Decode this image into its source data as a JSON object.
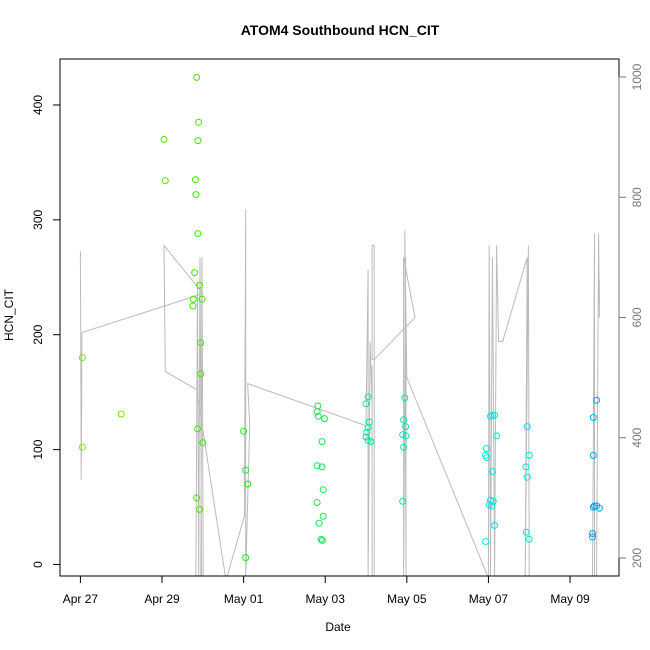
{
  "chart_data": {
    "type": "scatter",
    "title": "ATOM4 Southbound HCN_CIT",
    "xlabel": "Date",
    "ylabel": "HCN_CIT",
    "x_tick_labels": [
      "Apr 27",
      "Apr 29",
      "May 01",
      "May 03",
      "May 05",
      "May 07",
      "May 09"
    ],
    "x_tick_days": [
      0,
      2,
      4,
      6,
      8,
      10,
      12
    ],
    "xlim_days": [
      -0.5,
      13.2
    ],
    "y_ticks": [
      0,
      100,
      200,
      300,
      400
    ],
    "ylim": [
      -10,
      440
    ],
    "right_axis": {
      "label": "",
      "ticks": [
        200,
        400,
        600,
        800,
        1000
      ],
      "reversed": true,
      "ylim": [
        1030,
        170
      ],
      "color": "#777777"
    },
    "line_color": "#bbbbbb",
    "points": [
      {
        "day": 0.05,
        "y": 180,
        "color": "#7be600"
      },
      {
        "day": 0.05,
        "y": 102,
        "color": "#7be600"
      },
      {
        "day": 1.0,
        "y": 131,
        "color": "#6ee600"
      },
      {
        "day": 2.05,
        "y": 370,
        "color": "#55e600"
      },
      {
        "day": 2.08,
        "y": 334,
        "color": "#55e600"
      },
      {
        "day": 2.85,
        "y": 424,
        "color": "#44e600"
      },
      {
        "day": 2.9,
        "y": 385,
        "color": "#44e600"
      },
      {
        "day": 2.88,
        "y": 369,
        "color": "#44e600"
      },
      {
        "day": 2.82,
        "y": 335,
        "color": "#44e600"
      },
      {
        "day": 2.83,
        "y": 322,
        "color": "#44e600"
      },
      {
        "day": 2.88,
        "y": 288,
        "color": "#44e600"
      },
      {
        "day": 2.8,
        "y": 254,
        "color": "#44e600"
      },
      {
        "day": 2.92,
        "y": 243,
        "color": "#44e600"
      },
      {
        "day": 2.77,
        "y": 231,
        "color": "#44e600"
      },
      {
        "day": 2.98,
        "y": 231,
        "color": "#44e600"
      },
      {
        "day": 2.76,
        "y": 225,
        "color": "#44e600"
      },
      {
        "day": 2.95,
        "y": 193,
        "color": "#44e600"
      },
      {
        "day": 2.95,
        "y": 166,
        "color": "#44e600"
      },
      {
        "day": 2.87,
        "y": 118,
        "color": "#44e600"
      },
      {
        "day": 3.0,
        "y": 106,
        "color": "#44e600"
      },
      {
        "day": 2.85,
        "y": 58,
        "color": "#44e600"
      },
      {
        "day": 2.92,
        "y": 48,
        "color": "#44e600"
      },
      {
        "day": 4.0,
        "y": 116,
        "color": "#1ee628"
      },
      {
        "day": 4.05,
        "y": 82,
        "color": "#1ee628"
      },
      {
        "day": 4.1,
        "y": 70,
        "color": "#1ee628"
      },
      {
        "day": 4.05,
        "y": 6,
        "color": "#1ee628"
      },
      {
        "day": 5.82,
        "y": 138,
        "color": "#10e650"
      },
      {
        "day": 5.8,
        "y": 133,
        "color": "#10e650"
      },
      {
        "day": 5.83,
        "y": 129,
        "color": "#10e650"
      },
      {
        "day": 5.98,
        "y": 127,
        "color": "#10e650"
      },
      {
        "day": 5.92,
        "y": 107,
        "color": "#10e650"
      },
      {
        "day": 5.8,
        "y": 86,
        "color": "#10e650"
      },
      {
        "day": 5.92,
        "y": 85,
        "color": "#10e650"
      },
      {
        "day": 5.95,
        "y": 65,
        "color": "#10e650"
      },
      {
        "day": 5.8,
        "y": 54,
        "color": "#10e650"
      },
      {
        "day": 5.95,
        "y": 42,
        "color": "#10e650"
      },
      {
        "day": 5.85,
        "y": 36,
        "color": "#10e650"
      },
      {
        "day": 5.9,
        "y": 22,
        "color": "#10e650"
      },
      {
        "day": 5.93,
        "y": 21,
        "color": "#10e650"
      },
      {
        "day": 7.05,
        "y": 146,
        "color": "#00e6a0"
      },
      {
        "day": 7.0,
        "y": 140,
        "color": "#00e6a0"
      },
      {
        "day": 7.08,
        "y": 124,
        "color": "#00e6a0"
      },
      {
        "day": 7.05,
        "y": 119,
        "color": "#00e6a0"
      },
      {
        "day": 7.02,
        "y": 115,
        "color": "#00e6a0"
      },
      {
        "day": 7.0,
        "y": 111,
        "color": "#00e6a0"
      },
      {
        "day": 7.05,
        "y": 108,
        "color": "#00e6a0"
      },
      {
        "day": 7.12,
        "y": 107,
        "color": "#00e6a0"
      },
      {
        "day": 7.95,
        "y": 145,
        "color": "#00e6b0"
      },
      {
        "day": 7.92,
        "y": 126,
        "color": "#00e6b0"
      },
      {
        "day": 7.97,
        "y": 120,
        "color": "#00e6b0"
      },
      {
        "day": 7.9,
        "y": 113,
        "color": "#00e6b0"
      },
      {
        "day": 7.98,
        "y": 112,
        "color": "#00e6b0"
      },
      {
        "day": 7.92,
        "y": 102,
        "color": "#00e6b0"
      },
      {
        "day": 7.9,
        "y": 55,
        "color": "#00e6b0"
      },
      {
        "day": 10.05,
        "y": 129,
        "color": "#00e6e0"
      },
      {
        "day": 10.1,
        "y": 130,
        "color": "#00e6e0"
      },
      {
        "day": 10.15,
        "y": 130,
        "color": "#00e6e0"
      },
      {
        "day": 10.2,
        "y": 112,
        "color": "#00e6e0"
      },
      {
        "day": 9.95,
        "y": 101,
        "color": "#00e6e0"
      },
      {
        "day": 9.93,
        "y": 95,
        "color": "#00e6e0"
      },
      {
        "day": 9.96,
        "y": 93,
        "color": "#00e6e0"
      },
      {
        "day": 10.1,
        "y": 81,
        "color": "#00e6e0"
      },
      {
        "day": 10.05,
        "y": 56,
        "color": "#00e6e0"
      },
      {
        "day": 10.12,
        "y": 55,
        "color": "#00e6e0"
      },
      {
        "day": 10.02,
        "y": 52,
        "color": "#00e6e0"
      },
      {
        "day": 10.08,
        "y": 51,
        "color": "#00e6e0"
      },
      {
        "day": 10.15,
        "y": 34,
        "color": "#00e6e0"
      },
      {
        "day": 9.93,
        "y": 20,
        "color": "#00e6e0"
      },
      {
        "day": 10.95,
        "y": 120,
        "color": "#00dde6"
      },
      {
        "day": 11.0,
        "y": 95,
        "color": "#00dde6"
      },
      {
        "day": 10.92,
        "y": 85,
        "color": "#00dde6"
      },
      {
        "day": 10.95,
        "y": 76,
        "color": "#00dde6"
      },
      {
        "day": 10.93,
        "y": 28,
        "color": "#00dde6"
      },
      {
        "day": 11.0,
        "y": 22,
        "color": "#00dde6"
      },
      {
        "day": 12.65,
        "y": 143,
        "color": "#00a8e6"
      },
      {
        "day": 12.57,
        "y": 128,
        "color": "#00a8e6"
      },
      {
        "day": 12.57,
        "y": 95,
        "color": "#00a8e6"
      },
      {
        "day": 12.6,
        "y": 51,
        "color": "#00a8e6"
      },
      {
        "day": 12.65,
        "y": 51,
        "color": "#00a8e6"
      },
      {
        "day": 12.57,
        "y": 50,
        "color": "#00a8e6"
      },
      {
        "day": 12.72,
        "y": 49,
        "color": "#00a8e6"
      },
      {
        "day": 12.55,
        "y": 27,
        "color": "#00a8e6"
      },
      {
        "day": 12.55,
        "y": 24,
        "color": "#00a8e6"
      }
    ],
    "line_path": [
      [
        0.0,
        710
      ],
      [
        0.02,
        330
      ],
      [
        0.04,
        575
      ],
      [
        2.1,
        620
      ],
      [
        3.0,
        640
      ],
      [
        2.05,
        720
      ],
      [
        2.08,
        510
      ],
      [
        2.85,
        480
      ],
      [
        3.55,
        160
      ],
      [
        2.83,
        160
      ],
      [
        2.87,
        660
      ],
      [
        2.9,
        160
      ],
      [
        2.93,
        700
      ],
      [
        2.97,
        160
      ],
      [
        3.0,
        160
      ],
      [
        3.01,
        175
      ],
      [
        2.98,
        700
      ],
      [
        2.95,
        160
      ],
      [
        3.6,
        160
      ],
      [
        4.02,
        270
      ],
      [
        4.05,
        780
      ],
      [
        4.05,
        160
      ],
      [
        4.15,
        420
      ],
      [
        4.1,
        490
      ],
      [
        7.0,
        420
      ],
      [
        7.05,
        680
      ],
      [
        7.05,
        455
      ],
      [
        7.05,
        160
      ],
      [
        7.1,
        560
      ],
      [
        7.15,
        450
      ],
      [
        7.15,
        180
      ],
      [
        7.15,
        520
      ],
      [
        7.15,
        160
      ],
      [
        7.2,
        160
      ],
      [
        7.2,
        520
      ],
      [
        7.2,
        720
      ],
      [
        7.15,
        720
      ],
      [
        7.15,
        530
      ],
      [
        7.2,
        530
      ],
      [
        8.2,
        600
      ],
      [
        7.92,
        700
      ],
      [
        7.92,
        160
      ],
      [
        7.97,
        700
      ],
      [
        7.97,
        505
      ],
      [
        7.98,
        505
      ],
      [
        7.98,
        160
      ],
      [
        7.95,
        745
      ],
      [
        8.0,
        500
      ],
      [
        9.98,
        160
      ],
      [
        10.0,
        160
      ],
      [
        10.02,
        720
      ],
      [
        10.05,
        160
      ],
      [
        10.1,
        700
      ],
      [
        10.15,
        160
      ],
      [
        10.2,
        720
      ],
      [
        10.25,
        560
      ],
      [
        10.35,
        560
      ],
      [
        10.95,
        700
      ],
      [
        10.9,
        160
      ],
      [
        10.98,
        720
      ],
      [
        11.0,
        160
      ],
      [
        12.55,
        160
      ],
      [
        12.57,
        380
      ],
      [
        12.6,
        740
      ],
      [
        12.6,
        160
      ],
      [
        12.65,
        160
      ],
      [
        12.7,
        740
      ],
      [
        12.72,
        600
      ],
      [
        12.72,
        660
      ]
    ]
  }
}
